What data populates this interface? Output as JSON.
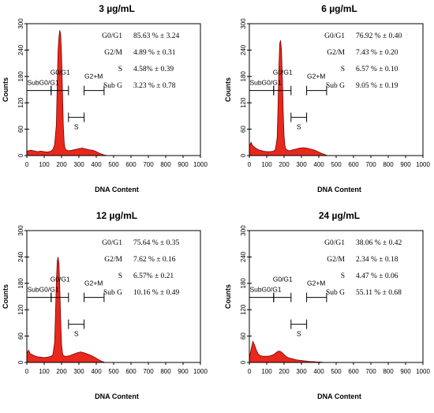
{
  "chart_data": [
    {
      "type": "area",
      "title": "3 µg/mL",
      "xlabel": "DNA Content",
      "ylabel": "Counts",
      "xlim": [
        0,
        1000
      ],
      "ylim": [
        0,
        300
      ],
      "xticks": [
        "0",
        "100",
        "200",
        "300",
        "400",
        "500",
        "600",
        "700",
        "800",
        "900",
        "1000"
      ],
      "yticks": [
        "0",
        "60",
        "120",
        "180",
        "240",
        "300"
      ],
      "gates": {
        "subg0g1": "SubG0/G1",
        "g0g1": "G0/G1",
        "g2m": "G2+M",
        "s": "S"
      },
      "stats": [
        {
          "label": "G0/G1",
          "value": "85.63 % ± 3.24"
        },
        {
          "label": "G2/M",
          "value": "4.89 % ± 0.31"
        },
        {
          "label": "S",
          "value": "4.58% ± 0.39"
        },
        {
          "label": "Sub G",
          "value": "3.23 % ± 0.78"
        }
      ],
      "x": [
        0,
        20,
        40,
        60,
        80,
        100,
        120,
        140,
        150,
        160,
        170,
        175,
        180,
        185,
        190,
        195,
        200,
        205,
        210,
        215,
        220,
        230,
        240,
        260,
        280,
        300,
        320,
        340,
        360,
        380,
        400,
        420,
        440,
        460
      ],
      "y": [
        10,
        12,
        11,
        9,
        10,
        9,
        8,
        10,
        14,
        25,
        70,
        160,
        240,
        270,
        285,
        275,
        230,
        150,
        70,
        30,
        16,
        12,
        11,
        12,
        14,
        16,
        17,
        15,
        13,
        12,
        9,
        5,
        2,
        0
      ]
    },
    {
      "type": "area",
      "title": "6 µg/mL",
      "xlabel": "DNA Content",
      "ylabel": "Counts",
      "xlim": [
        0,
        1000
      ],
      "ylim": [
        0,
        300
      ],
      "xticks": [
        "0",
        "100",
        "200",
        "300",
        "400",
        "500",
        "600",
        "700",
        "800",
        "900",
        "1000"
      ],
      "yticks": [
        "0",
        "60",
        "120",
        "180",
        "240",
        "300"
      ],
      "gates": {
        "subg0g1": "SubG0/G1",
        "g0g1": "G0/G1",
        "g2m": "G2+M",
        "s": "S"
      },
      "stats": [
        {
          "label": "G0/G1",
          "value": "76.92 % ± 0.40"
        },
        {
          "label": "G2/M",
          "value": "7.43 % ± 0.20"
        },
        {
          "label": "S",
          "value": "6.57 % ± 0.10"
        },
        {
          "label": "Sub G",
          "value": "9.05 % ± 0.19"
        }
      ],
      "x": [
        0,
        10,
        20,
        40,
        60,
        80,
        100,
        120,
        140,
        150,
        160,
        165,
        170,
        175,
        180,
        185,
        190,
        195,
        200,
        205,
        210,
        220,
        230,
        250,
        270,
        290,
        310,
        330,
        350,
        370,
        390,
        410,
        430,
        450
      ],
      "y": [
        22,
        30,
        22,
        16,
        12,
        10,
        9,
        9,
        10,
        14,
        40,
        110,
        200,
        255,
        262,
        240,
        180,
        100,
        45,
        22,
        15,
        12,
        11,
        13,
        15,
        17,
        18,
        17,
        15,
        13,
        10,
        6,
        3,
        0
      ]
    },
    {
      "type": "area",
      "title": "12 µg/mL",
      "xlabel": "DNA Content",
      "ylabel": "Counts",
      "xlim": [
        0,
        1000
      ],
      "ylim": [
        0,
        300
      ],
      "xticks": [
        "0",
        "100",
        "200",
        "300",
        "400",
        "500",
        "600",
        "700",
        "800",
        "900",
        "1000"
      ],
      "yticks": [
        "0",
        "60",
        "120",
        "180",
        "240",
        "300"
      ],
      "gates": {
        "subg0g1": "SubG0/G1",
        "g0g1": "G0/G1",
        "g2m": "G2+M",
        "s": "S"
      },
      "stats": [
        {
          "label": "G0/G1",
          "value": "75.64 % ± 0.35"
        },
        {
          "label": "G2/M",
          "value": "7.62 % ± 0.16"
        },
        {
          "label": "S",
          "value": "6.57% ± 0.21"
        },
        {
          "label": "Sub G",
          "value": "10.16 % ± 0.49"
        }
      ],
      "x": [
        0,
        10,
        20,
        40,
        60,
        80,
        100,
        120,
        140,
        150,
        160,
        165,
        170,
        175,
        180,
        185,
        190,
        195,
        200,
        205,
        210,
        220,
        230,
        250,
        270,
        290,
        310,
        330,
        350,
        370,
        390,
        410,
        430,
        450
      ],
      "y": [
        20,
        28,
        20,
        16,
        13,
        12,
        11,
        12,
        14,
        18,
        45,
        110,
        180,
        230,
        240,
        225,
        170,
        95,
        42,
        22,
        16,
        14,
        14,
        16,
        19,
        22,
        24,
        22,
        19,
        16,
        12,
        7,
        3,
        0
      ]
    },
    {
      "type": "area",
      "title": "24 µg/mL",
      "xlabel": "DNA Content",
      "ylabel": "Counts",
      "xlim": [
        0,
        1000
      ],
      "ylim": [
        0,
        300
      ],
      "xticks": [
        "0",
        "100",
        "200",
        "300",
        "400",
        "500",
        "600",
        "700",
        "800",
        "900",
        "1000"
      ],
      "yticks": [
        "0",
        "60",
        "120",
        "180",
        "240",
        "300"
      ],
      "gates": {
        "subg0g1": "SubG0/G1",
        "g0g1": "G0/G1",
        "g2m": "G2+M",
        "s": "S"
      },
      "stats": [
        {
          "label": "G0/G1",
          "value": "38.06 % ± 0.42"
        },
        {
          "label": "G2/M",
          "value": "2.34 % ± 0.18"
        },
        {
          "label": "S",
          "value": "4.47 % ± 0.06"
        },
        {
          "label": "Sub G",
          "value": "55.11 % ± 0.68"
        }
      ],
      "x": [
        0,
        10,
        20,
        30,
        40,
        50,
        60,
        80,
        100,
        120,
        140,
        160,
        170,
        180,
        190,
        200,
        210,
        230,
        250,
        270,
        290,
        310,
        330,
        350,
        370,
        390,
        410,
        430
      ],
      "y": [
        10,
        30,
        48,
        40,
        28,
        20,
        16,
        14,
        14,
        15,
        18,
        24,
        26,
        25,
        22,
        18,
        14,
        10,
        8,
        6,
        5,
        4,
        3,
        2,
        2,
        1,
        1,
        0
      ]
    }
  ],
  "colors": {
    "fill": "#e8281c",
    "stroke": "#7a0000",
    "axis": "#000000"
  }
}
